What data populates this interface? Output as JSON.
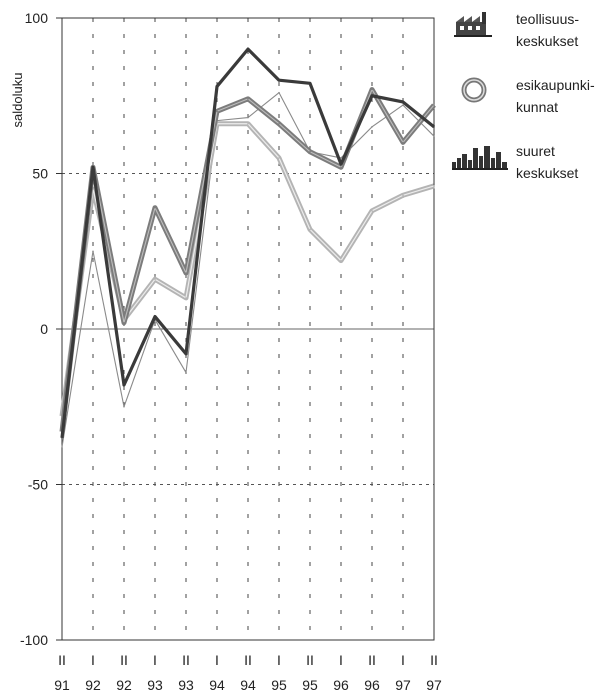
{
  "chart_data": {
    "type": "line",
    "ylabel": "saldoluku",
    "ylim": [
      -100,
      100
    ],
    "yticks": [
      -100,
      -50,
      0,
      50,
      100
    ],
    "yticks_labels": [
      "-100",
      "-50",
      "0",
      "50",
      "100"
    ],
    "x_periods": [
      "II",
      "I",
      "II",
      "I",
      "II",
      "I",
      "II",
      "I",
      "II",
      "I",
      "II",
      "I",
      "II"
    ],
    "x_years": [
      "91",
      "92",
      "92",
      "93",
      "93",
      "94",
      "94",
      "95",
      "95",
      "96",
      "96",
      "97",
      "97"
    ],
    "grid": true,
    "legend_position": "right",
    "legend": [
      {
        "line1": "teollisuus-",
        "line2": "keskukset",
        "icon": "factory-icon"
      },
      {
        "line1": "esikaupunki-",
        "line2": "kunnat",
        "icon": "ring-icon"
      },
      {
        "line1": "suuret",
        "line2": "keskukset",
        "icon": "city-skyline-icon"
      }
    ],
    "series": [
      {
        "color": "#3a3a3a",
        "style": "thick-dark",
        "values": [
          -35,
          52,
          -18,
          4,
          -8,
          78,
          90,
          80,
          79,
          53,
          75,
          73,
          65
        ]
      },
      {
        "color": "#b9b9b9",
        "style": "double-light",
        "values": [
          -28,
          45,
          3,
          16,
          10,
          66,
          66,
          55,
          32,
          22,
          38,
          43,
          46
        ]
      },
      {
        "color": "#7a7a7a",
        "style": "medium-gray",
        "values": [
          -33,
          52,
          2,
          39,
          18,
          70,
          74,
          66,
          57,
          52,
          77,
          60,
          72
        ]
      },
      {
        "color": "#888888",
        "style": "thin",
        "values": [
          -38,
          25,
          -25,
          3,
          -14,
          67,
          68,
          76,
          57,
          55,
          65,
          72,
          62
        ]
      }
    ]
  }
}
